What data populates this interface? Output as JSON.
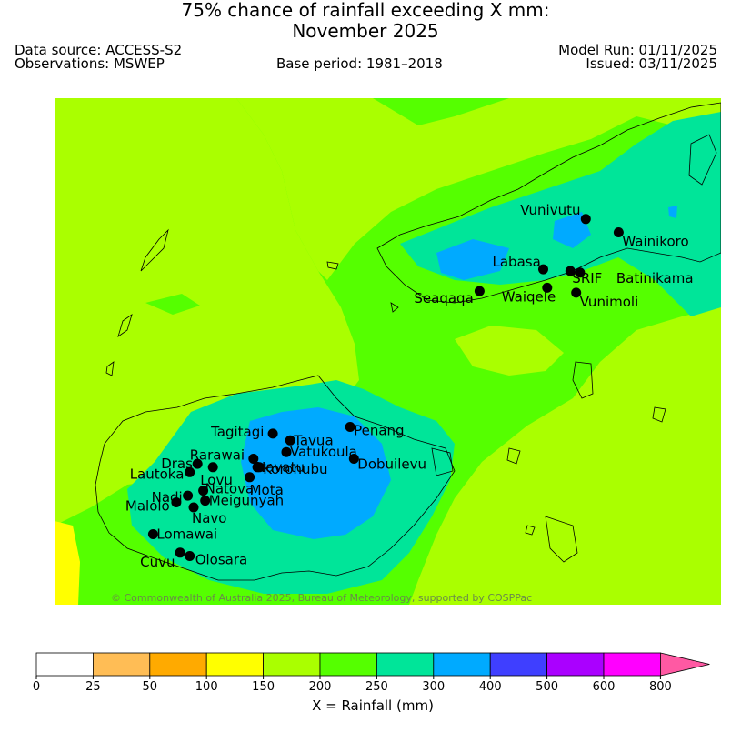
{
  "header": {
    "title_line1": "75% chance of rainfall exceeding X mm:",
    "title_line2": "November 2025",
    "data_source": "Data source: ACCESS-S2",
    "observations": "Observations: MSWEP",
    "base_period": "Base period: 1981–2018",
    "model_run": "Model Run: 01/11/2025",
    "issued": "Issued: 03/11/2025"
  },
  "map": {
    "copyright": "© Commonwealth of Australia 2025, Bureau of Meteorology, supported by COSPPac",
    "stations": [
      {
        "name": "Vunivutu",
        "lon": 179.6,
        "lat": -16.12
      },
      {
        "name": "Wainikoro",
        "lon": 179.77,
        "lat": -16.2
      },
      {
        "name": "Labasa",
        "lon": 179.38,
        "lat": -16.42
      },
      {
        "name": "SRIF",
        "lon": 179.52,
        "lat": -16.43
      },
      {
        "name": "Batinikama",
        "lon": 179.57,
        "lat": -16.44
      },
      {
        "name": "Waiqele",
        "lon": 179.4,
        "lat": -16.53
      },
      {
        "name": "Seaqaqa",
        "lon": 179.05,
        "lat": -16.55
      },
      {
        "name": "Vunimoli",
        "lon": 179.55,
        "lat": -16.56
      },
      {
        "name": "Tagitagi",
        "lon": 177.98,
        "lat": -17.4
      },
      {
        "name": "Penang",
        "lon": 178.38,
        "lat": -17.36
      },
      {
        "name": "Tavua",
        "lon": 178.07,
        "lat": -17.44
      },
      {
        "name": "Vatukoula",
        "lon": 178.05,
        "lat": -17.51
      },
      {
        "name": "Rarawai",
        "lon": 177.88,
        "lat": -17.55
      },
      {
        "name": "Navatu",
        "lon": 177.9,
        "lat": -17.6
      },
      {
        "name": "Drasa",
        "lon": 177.59,
        "lat": -17.58
      },
      {
        "name": "Koronubu",
        "lon": 177.91,
        "lat": -17.6
      },
      {
        "name": "Lautoka",
        "lon": 177.55,
        "lat": -17.63
      },
      {
        "name": "Lovu",
        "lon": 177.67,
        "lat": -17.6
      },
      {
        "name": "Mota",
        "lon": 177.86,
        "lat": -17.66
      },
      {
        "name": "Dobuilevu",
        "lon": 178.4,
        "lat": -17.55
      },
      {
        "name": "Natova",
        "lon": 177.62,
        "lat": -17.74
      },
      {
        "name": "Nadi",
        "lon": 177.54,
        "lat": -17.77
      },
      {
        "name": "Meigunyah",
        "lon": 177.63,
        "lat": -17.8
      },
      {
        "name": "Malolo",
        "lon": 177.48,
        "lat": -17.81
      },
      {
        "name": "Navo",
        "lon": 177.57,
        "lat": -17.84
      },
      {
        "name": "Lomawai",
        "lon": 177.36,
        "lat": -18.0
      },
      {
        "name": "Cuvu",
        "lon": 177.5,
        "lat": -18.11
      },
      {
        "name": "Olosara",
        "lon": 177.55,
        "lat": -18.13
      }
    ]
  },
  "colorbar": {
    "label": "X = Rainfall (mm)",
    "ticks": [
      "0",
      "25",
      "50",
      "100",
      "150",
      "200",
      "250",
      "300",
      "400",
      "500",
      "600",
      "800"
    ],
    "colors": [
      "#ffffff",
      "#ffbd55",
      "#ffaa00",
      "#ffff00",
      "#aaff00",
      "#55ff00",
      "#00e599",
      "#00aaff",
      "#3f3fff",
      "#aa00ff",
      "#ff00ff",
      "#ff59a3"
    ]
  },
  "colors": {
    "land_outline": "#000000",
    "station_marker": "#000000"
  }
}
